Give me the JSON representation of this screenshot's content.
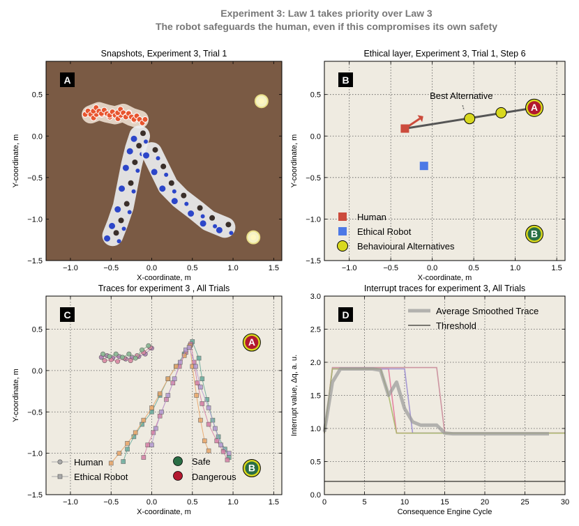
{
  "figure": {
    "title_line1": "Experiment 3: Law 1 takes priority over Law 3",
    "title_line2": "The robot safeguards the human, even if this compromises its own safety"
  },
  "colors": {
    "background": "#efebe1",
    "snapshot_bg": "#7a5a44",
    "human": "#cc4b3c",
    "robot": "#4d79e6",
    "alternative": "#d8d81e",
    "safe": "#2a6e45",
    "dangerous": "#b3182f",
    "grid": "#555555"
  },
  "chart_data": [
    {
      "id": "A",
      "type": "scatter",
      "title": "Snapshots, Experiment 3, Trial 1",
      "panel_letter": "A",
      "xlabel": "X-coordinate, m",
      "ylabel": "Y-coordinate, m",
      "xlim": [
        -1.3,
        1.6
      ],
      "ylim": [
        -1.5,
        0.9
      ],
      "xticks": [
        -1.0,
        -0.5,
        0.0,
        0.5,
        1.0,
        1.5
      ],
      "yticks": [
        -1.5,
        -1.0,
        -0.5,
        0.0,
        0.5
      ],
      "xtick_labels": [
        "−1.0",
        "−0.5",
        "0.0",
        "0.5",
        "1.0",
        "1.5"
      ],
      "ytick_labels": [
        "−1.5",
        "−1.0",
        "−0.5",
        "0.0",
        "0.5"
      ],
      "grid": false,
      "image": "overhead photograph of robot trails",
      "human_trail": [
        [
          -0.75,
          0.26
        ],
        [
          -0.65,
          0.3
        ],
        [
          -0.55,
          0.27
        ],
        [
          -0.45,
          0.25
        ],
        [
          -0.35,
          0.28
        ],
        [
          -0.25,
          0.23
        ],
        [
          -0.15,
          0.2
        ]
      ],
      "robot_trail_left": [
        [
          -0.15,
          0.0
        ],
        [
          -0.2,
          -0.15
        ],
        [
          -0.25,
          -0.35
        ],
        [
          -0.3,
          -0.6
        ],
        [
          -0.35,
          -0.85
        ],
        [
          -0.42,
          -1.05
        ],
        [
          -0.48,
          -1.2
        ]
      ],
      "robot_trail_right": [
        [
          0.0,
          -0.2
        ],
        [
          0.1,
          -0.4
        ],
        [
          0.2,
          -0.6
        ],
        [
          0.35,
          -0.75
        ],
        [
          0.55,
          -0.9
        ],
        [
          0.7,
          -1.02
        ],
        [
          0.9,
          -1.1
        ]
      ],
      "goals": [
        [
          1.35,
          0.42
        ],
        [
          1.25,
          -1.22
        ]
      ]
    },
    {
      "id": "B",
      "type": "scatter",
      "title": "Ethical layer, Experiment 3, Trial 1, Step 6",
      "panel_letter": "B",
      "xlabel": "X-coordinate, m",
      "ylabel": "Y-coordinate, m",
      "xlim": [
        -1.3,
        1.6
      ],
      "ylim": [
        -1.5,
        0.9
      ],
      "xticks": [
        -1.0,
        -0.5,
        0.0,
        0.5,
        1.0,
        1.5
      ],
      "yticks": [
        -1.5,
        -1.0,
        -0.5,
        0.0,
        0.5
      ],
      "xtick_labels": [
        "−1.0",
        "−0.5",
        "0.0",
        "0.5",
        "1.0",
        "1.5"
      ],
      "ytick_labels": [
        "−1.5",
        "−1.0",
        "−0.5",
        "0.0",
        "0.5"
      ],
      "grid": true,
      "human": {
        "x": -0.33,
        "y": 0.09
      },
      "robot": {
        "x": -0.1,
        "y": -0.36
      },
      "human_heading_arrow": [
        [
          -0.33,
          0.09
        ],
        [
          -0.15,
          0.21
        ]
      ],
      "alternatives_line": [
        [
          -0.33,
          0.09
        ],
        [
          1.23,
          0.34
        ]
      ],
      "alternatives": [
        {
          "x": 0.45,
          "y": 0.21
        },
        {
          "x": 0.83,
          "y": 0.28
        },
        {
          "x": 1.23,
          "y": 0.34
        }
      ],
      "best_alternative": {
        "x": 0.45,
        "y": 0.21,
        "label": "Best Alternative",
        "label_pos": [
          0.35,
          0.48
        ]
      },
      "goal_A": {
        "x": 1.23,
        "y": 0.34,
        "label": "A"
      },
      "goal_B": {
        "x": 1.23,
        "y": -1.18,
        "label": "B"
      },
      "legend": [
        {
          "label": "Human",
          "marker": "square",
          "color": "#cc4b3c"
        },
        {
          "label": "Ethical Robot",
          "marker": "square",
          "color": "#4d79e6"
        },
        {
          "label": "Behavioural Alternatives",
          "marker": "circle",
          "color": "#d8d81e"
        }
      ]
    },
    {
      "id": "C",
      "type": "line",
      "title": "Traces for experiment 3 , All Trials",
      "panel_letter": "C",
      "xlabel": "X-coordinate, m",
      "ylabel": "Y-coordinate, m",
      "xlim": [
        -1.3,
        1.6
      ],
      "ylim": [
        -1.5,
        0.9
      ],
      "xticks": [
        -1.0,
        -0.5,
        0.0,
        0.5,
        1.0,
        1.5
      ],
      "yticks": [
        -1.5,
        -1.0,
        -0.5,
        0.0,
        0.5
      ],
      "xtick_labels": [
        "−1.0",
        "−0.5",
        "0.0",
        "0.5",
        "1.0",
        "1.5"
      ],
      "ytick_labels": [
        "−1.5",
        "−1.0",
        "−0.5",
        "0.0",
        "0.5"
      ],
      "grid": true,
      "goal_A": {
        "x": 1.23,
        "y": 0.34,
        "label": "A",
        "color": "#b3182f"
      },
      "goal_B": {
        "x": 1.23,
        "y": -1.18,
        "label": "B",
        "color": "#2a6e45"
      },
      "human_traces": [
        {
          "color": "#b07fb3",
          "points": [
            [
              -0.62,
              0.16
            ],
            [
              -0.55,
              0.18
            ],
            [
              -0.48,
              0.15
            ],
            [
              -0.4,
              0.17
            ],
            [
              -0.32,
              0.14
            ],
            [
              -0.24,
              0.16
            ],
            [
              -0.16,
              0.17
            ],
            [
              -0.08,
              0.2
            ],
            [
              0.0,
              0.27
            ]
          ]
        },
        {
          "color": "#d98aa4",
          "points": [
            [
              -0.58,
              0.12
            ],
            [
              -0.5,
              0.13
            ],
            [
              -0.42,
              0.11
            ],
            [
              -0.34,
              0.15
            ],
            [
              -0.26,
              0.12
            ],
            [
              -0.18,
              0.18
            ],
            [
              -0.1,
              0.22
            ],
            [
              -0.02,
              0.28
            ]
          ]
        },
        {
          "color": "#8ab894",
          "points": [
            [
              -0.6,
              0.2
            ],
            [
              -0.52,
              0.17
            ],
            [
              -0.44,
              0.2
            ],
            [
              -0.36,
              0.16
            ],
            [
              -0.28,
              0.2
            ],
            [
              -0.2,
              0.15
            ],
            [
              -0.12,
              0.25
            ],
            [
              -0.04,
              0.3
            ]
          ]
        }
      ],
      "robot_traces": [
        {
          "color": "#6aab9c",
          "points": [
            [
              -0.35,
              -1.1
            ],
            [
              -0.3,
              -0.95
            ],
            [
              -0.22,
              -0.8
            ],
            [
              -0.12,
              -0.65
            ],
            [
              0.0,
              -0.5
            ],
            [
              0.1,
              -0.3
            ],
            [
              0.2,
              -0.1
            ],
            [
              0.3,
              0.05
            ],
            [
              0.4,
              0.2
            ],
            [
              0.5,
              0.35
            ],
            [
              0.58,
              0.15
            ],
            [
              0.62,
              -0.1
            ],
            [
              0.68,
              -0.35
            ],
            [
              0.75,
              -0.6
            ],
            [
              0.82,
              -0.8
            ],
            [
              0.9,
              -0.95
            ],
            [
              0.95,
              -1.05
            ]
          ]
        },
        {
          "color": "#d47fa6",
          "points": [
            [
              -0.1,
              -1.05
            ],
            [
              -0.05,
              -0.9
            ],
            [
              0.02,
              -0.75
            ],
            [
              0.1,
              -0.55
            ],
            [
              0.18,
              -0.35
            ],
            [
              0.26,
              -0.15
            ],
            [
              0.34,
              0.05
            ],
            [
              0.42,
              0.22
            ],
            [
              0.48,
              0.32
            ],
            [
              0.52,
              0.1
            ],
            [
              0.56,
              -0.15
            ],
            [
              0.62,
              -0.4
            ],
            [
              0.7,
              -0.65
            ],
            [
              0.8,
              -0.85
            ],
            [
              0.88,
              -0.98
            ],
            [
              0.93,
              -1.08
            ]
          ]
        },
        {
          "color": "#e8a66a",
          "points": [
            [
              -0.5,
              -1.12
            ],
            [
              -0.4,
              -1.0
            ],
            [
              -0.3,
              -0.88
            ],
            [
              -0.2,
              -0.75
            ],
            [
              -0.1,
              -0.6
            ],
            [
              0.0,
              -0.45
            ],
            [
              0.1,
              -0.28
            ],
            [
              0.2,
              -0.1
            ],
            [
              0.3,
              0.05
            ],
            [
              0.4,
              0.18
            ],
            [
              0.47,
              0.3
            ],
            [
              0.5,
              0.05
            ],
            [
              0.55,
              -0.3
            ],
            [
              0.6,
              -0.6
            ],
            [
              0.65,
              -0.85
            ],
            [
              0.7,
              -0.97
            ]
          ]
        },
        {
          "color": "#b49ad1",
          "points": [
            [
              0.0,
              -0.9
            ],
            [
              0.05,
              -0.7
            ],
            [
              0.12,
              -0.5
            ],
            [
              0.2,
              -0.3
            ],
            [
              0.28,
              -0.1
            ],
            [
              0.35,
              0.1
            ],
            [
              0.42,
              0.25
            ],
            [
              0.46,
              0.28
            ],
            [
              0.54,
              0.05
            ],
            [
              0.6,
              -0.2
            ],
            [
              0.7,
              -0.45
            ],
            [
              0.78,
              -0.7
            ],
            [
              0.85,
              -0.9
            ],
            [
              0.95,
              -1.0
            ]
          ]
        }
      ],
      "legend": [
        {
          "label": "Human",
          "marker": "circle",
          "color": "#aaaaaa"
        },
        {
          "label": "Ethical Robot",
          "marker": "square",
          "color": "#aaaaaa"
        },
        {
          "label": "Safe",
          "marker": "circle",
          "color": "#2a6e45"
        },
        {
          "label": "Dangerous",
          "marker": "circle",
          "color": "#b3182f"
        }
      ]
    },
    {
      "id": "D",
      "type": "line",
      "title": "Interrupt traces for experiment 3, All Trials",
      "panel_letter": "D",
      "xlabel": "Consequence Engine Cycle",
      "ylabel": "Interrupt value, Δq, a. u.",
      "xlim": [
        0,
        30
      ],
      "ylim": [
        0.0,
        3.0
      ],
      "xticks": [
        0,
        5,
        10,
        15,
        20,
        25,
        30
      ],
      "yticks": [
        0.0,
        0.5,
        1.0,
        1.5,
        2.0,
        2.5,
        3.0
      ],
      "xtick_labels": [
        "0",
        "5",
        "10",
        "15",
        "20",
        "25",
        "30"
      ],
      "ytick_labels": [
        "0.0",
        "0.5",
        "1.0",
        "1.5",
        "2.0",
        "2.5",
        "3.0"
      ],
      "grid": true,
      "threshold": 0.2,
      "average_trace": {
        "x": [
          0,
          1,
          2,
          3,
          4,
          5,
          6,
          7,
          8,
          9,
          10,
          11,
          12,
          13,
          14,
          15,
          16,
          20,
          25,
          28
        ],
        "y": [
          0.95,
          1.7,
          1.9,
          1.9,
          1.9,
          1.9,
          1.9,
          1.88,
          1.5,
          1.7,
          1.3,
          1.1,
          1.05,
          1.05,
          1.05,
          0.93,
          0.92,
          0.92,
          0.92,
          0.92
        ]
      },
      "trial_traces": [
        {
          "color": "#e37a9a",
          "x": [
            0,
            1,
            8,
            9,
            10,
            30
          ],
          "y": [
            0.93,
            1.9,
            1.9,
            0.93,
            0.93,
            0.93
          ]
        },
        {
          "color": "#9c8fd1",
          "x": [
            0,
            1,
            9,
            10,
            11,
            30
          ],
          "y": [
            0.93,
            1.9,
            1.9,
            1.9,
            0.93,
            0.93
          ]
        },
        {
          "color": "#c98c9a",
          "x": [
            0,
            1,
            14,
            15,
            30
          ],
          "y": [
            0.93,
            1.92,
            1.92,
            0.93,
            0.93
          ]
        },
        {
          "color": "#a9b86a",
          "x": [
            0,
            1,
            7,
            8,
            9,
            30
          ],
          "y": [
            0.93,
            1.9,
            1.9,
            1.5,
            0.93,
            0.93
          ]
        }
      ],
      "legend": [
        {
          "label": "Average Smoothed Trace",
          "style": "thick-gray"
        },
        {
          "label": "Threshold",
          "style": "thin-black"
        }
      ]
    }
  ]
}
